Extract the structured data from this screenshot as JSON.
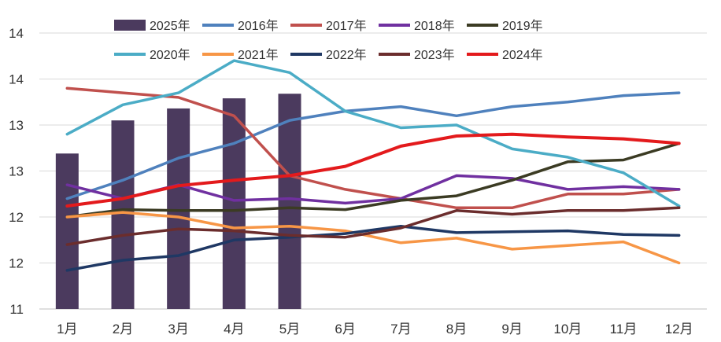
{
  "chart_data": {
    "type": "bar+line",
    "categories": [
      "1月",
      "2月",
      "3月",
      "4月",
      "5月",
      "6月",
      "7月",
      "8月",
      "9月",
      "10月",
      "11月",
      "12月"
    ],
    "y_tick_labels": [
      "11",
      "12",
      "12",
      "13",
      "13",
      "14",
      "14"
    ],
    "ylim": [
      11,
      14
    ],
    "grid": true,
    "legend_position": "top",
    "bar_series": {
      "name": "2025年",
      "color": "#4B3A5E",
      "values": [
        12.69,
        13.05,
        13.18,
        13.29,
        13.34
      ]
    },
    "series": [
      {
        "name": "2016年",
        "color": "#4F81BD",
        "values": [
          12.2,
          12.4,
          12.64,
          12.8,
          13.05,
          13.15,
          13.2,
          13.1,
          13.2,
          13.25,
          13.32,
          13.35
        ]
      },
      {
        "name": "2017年",
        "color": "#C0504D",
        "values": [
          13.4,
          13.35,
          13.3,
          13.1,
          12.45,
          12.3,
          12.2,
          12.1,
          12.1,
          12.25,
          12.25,
          12.3
        ]
      },
      {
        "name": "2018年",
        "color": "#7030A0",
        "values": [
          12.35,
          12.2,
          12.35,
          12.18,
          12.2,
          12.15,
          12.2,
          12.45,
          12.42,
          12.3,
          12.33,
          12.3
        ]
      },
      {
        "name": "2019年",
        "color": "#3B3B23",
        "values": [
          12.0,
          12.08,
          12.07,
          12.07,
          12.1,
          12.08,
          12.18,
          12.23,
          12.4,
          12.6,
          12.62,
          12.8
        ]
      },
      {
        "name": "2020年",
        "color": "#4BACC6",
        "values": [
          12.9,
          13.22,
          13.35,
          13.7,
          13.57,
          13.15,
          12.97,
          13.0,
          12.74,
          12.65,
          12.48,
          12.12
        ]
      },
      {
        "name": "2021年",
        "color": "#F79646",
        "values": [
          12.0,
          12.05,
          12.0,
          11.88,
          11.9,
          11.85,
          11.72,
          11.77,
          11.65,
          11.69,
          11.73,
          11.5
        ]
      },
      {
        "name": "2022年",
        "color": "#1F3864",
        "values": [
          11.42,
          11.53,
          11.58,
          11.75,
          11.78,
          11.82,
          11.9,
          11.83,
          11.84,
          11.85,
          11.81,
          11.8
        ]
      },
      {
        "name": "2023年",
        "color": "#6B2D2D",
        "values": [
          11.7,
          11.8,
          11.87,
          11.85,
          11.8,
          11.78,
          11.88,
          12.07,
          12.03,
          12.07,
          12.07,
          12.1
        ]
      },
      {
        "name": "2024年",
        "color": "#E31A1C",
        "values": [
          12.12,
          12.2,
          12.34,
          12.4,
          12.45,
          12.55,
          12.77,
          12.88,
          12.9,
          12.87,
          12.85,
          12.8
        ]
      }
    ]
  }
}
